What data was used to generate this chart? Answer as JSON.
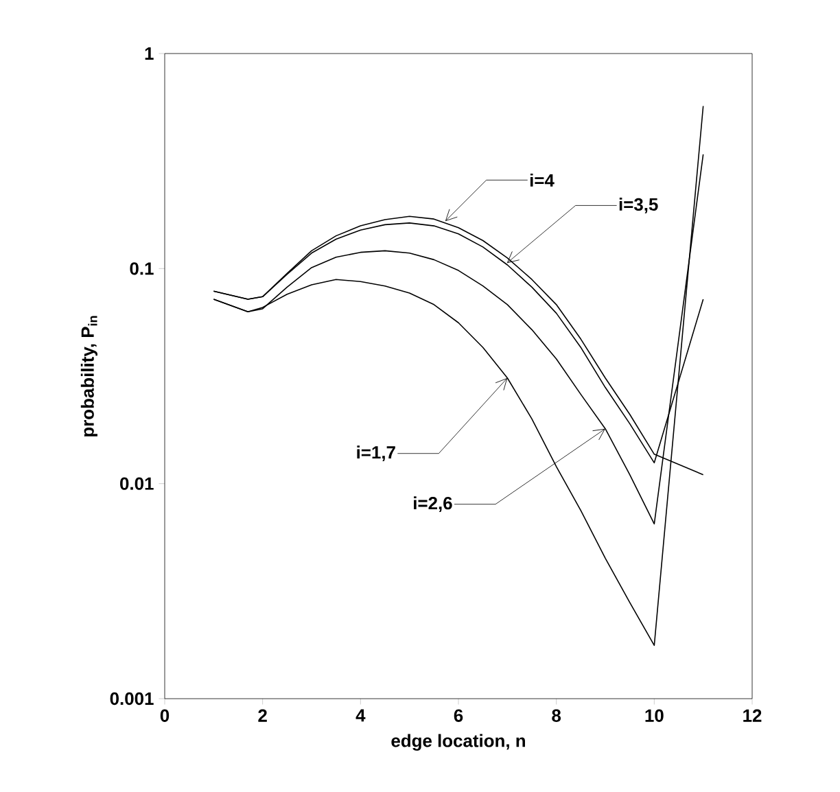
{
  "chart_data": {
    "type": "line",
    "xlabel": "edge location, n",
    "ylabel": "probability, P$_{in}$",
    "x": [
      1,
      1.7,
      2,
      2.5,
      3,
      3.5,
      4,
      4.5,
      5,
      5.5,
      6,
      6.5,
      7,
      7.5,
      8,
      8.5,
      9,
      9.5,
      10,
      11
    ],
    "series": [
      {
        "color": "#000000",
        "values": [
          0.0785,
          0.072,
          0.074,
          0.095,
          0.121,
          0.142,
          0.158,
          0.169,
          0.175,
          0.17,
          0.155,
          0.135,
          0.112,
          0.089,
          0.068,
          0.047,
          0.031,
          0.021,
          0.0137,
          0.011
        ]
      },
      {
        "color": "#000000",
        "values": [
          0.0785,
          0.072,
          0.074,
          0.094,
          0.118,
          0.137,
          0.151,
          0.16,
          0.163,
          0.158,
          0.145,
          0.126,
          0.104,
          0.082,
          0.062,
          0.043,
          0.028,
          0.019,
          0.0125,
          0.072
        ]
      },
      {
        "color": "#000000",
        "values": [
          0.072,
          0.063,
          0.065,
          0.082,
          0.101,
          0.113,
          0.119,
          0.121,
          0.118,
          0.11,
          0.098,
          0.083,
          0.068,
          0.052,
          0.038,
          0.026,
          0.018,
          0.011,
          0.0065,
          0.34
        ]
      },
      {
        "color": "#000000",
        "values": [
          0.072,
          0.063,
          0.066,
          0.076,
          0.084,
          0.089,
          0.087,
          0.083,
          0.077,
          0.068,
          0.056,
          0.043,
          0.031,
          0.02,
          0.012,
          0.0075,
          0.0045,
          0.0028,
          0.00177,
          0.57
        ]
      }
    ],
    "annotations": [
      {
        "text": "i=4",
        "x": 5.73,
        "y": 0.166
      },
      {
        "text": "i=3,5",
        "x": 6.99,
        "y": 0.106
      },
      {
        "text": "i=1,7",
        "x": 7,
        "y": 0.031
      },
      {
        "text": "i=2,6",
        "x": 9,
        "y": 0.018
      }
    ],
    "xlim": [
      0,
      12
    ],
    "xticks": [
      0,
      2,
      4,
      6,
      8,
      10,
      12
    ],
    "ylim": [
      0.001,
      1
    ],
    "yticks": [
      0.001,
      0.01,
      0.1,
      1
    ],
    "log": "y",
    "grid": false,
    "marker": "none",
    "line_style": "solid"
  }
}
